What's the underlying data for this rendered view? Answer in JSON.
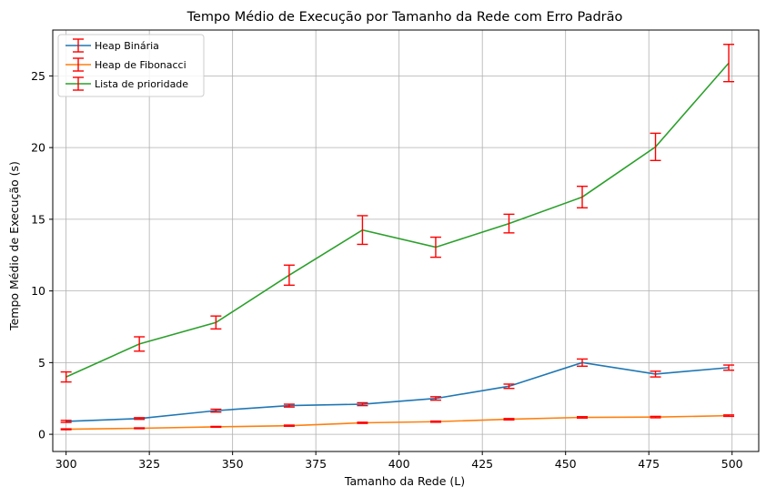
{
  "chart_data": {
    "type": "line",
    "title": "Tempo Médio de Execução por Tamanho da Rede com Erro Padrão",
    "xlabel": "Tamanho da Rede (L)",
    "ylabel": "Tempo Médio de Execução (s)",
    "xlim": [
      296,
      508
    ],
    "ylim": [
      -1.2,
      28.2
    ],
    "xticks": [
      300,
      325,
      350,
      375,
      400,
      425,
      450,
      475,
      500
    ],
    "yticks": [
      0,
      5,
      10,
      15,
      20,
      25
    ],
    "grid": true,
    "legend_position": "top-left",
    "error_bar_color": "#ff0000",
    "x": [
      300,
      322,
      345,
      367,
      389,
      411,
      433,
      455,
      477,
      499
    ],
    "series": [
      {
        "name": "Heap Binária",
        "color": "#1f77b4",
        "values": [
          0.9,
          1.1,
          1.65,
          2.0,
          2.1,
          2.5,
          3.35,
          5.0,
          4.2,
          4.65
        ],
        "errors": [
          0.07,
          0.06,
          0.1,
          0.1,
          0.1,
          0.12,
          0.15,
          0.25,
          0.2,
          0.18
        ]
      },
      {
        "name": "Heap de Fibonacci",
        "color": "#ff7f0e",
        "values": [
          0.35,
          0.42,
          0.52,
          0.6,
          0.8,
          0.88,
          1.05,
          1.18,
          1.2,
          1.3
        ],
        "errors": [
          0.03,
          0.03,
          0.03,
          0.04,
          0.04,
          0.04,
          0.05,
          0.05,
          0.05,
          0.05
        ]
      },
      {
        "name": "Lista de prioridade",
        "color": "#2ca02c",
        "values": [
          4.0,
          6.3,
          7.8,
          11.1,
          14.25,
          13.05,
          14.7,
          16.55,
          20.05,
          25.9
        ],
        "errors": [
          0.35,
          0.5,
          0.45,
          0.7,
          1.0,
          0.7,
          0.65,
          0.75,
          0.95,
          1.3
        ]
      }
    ]
  }
}
